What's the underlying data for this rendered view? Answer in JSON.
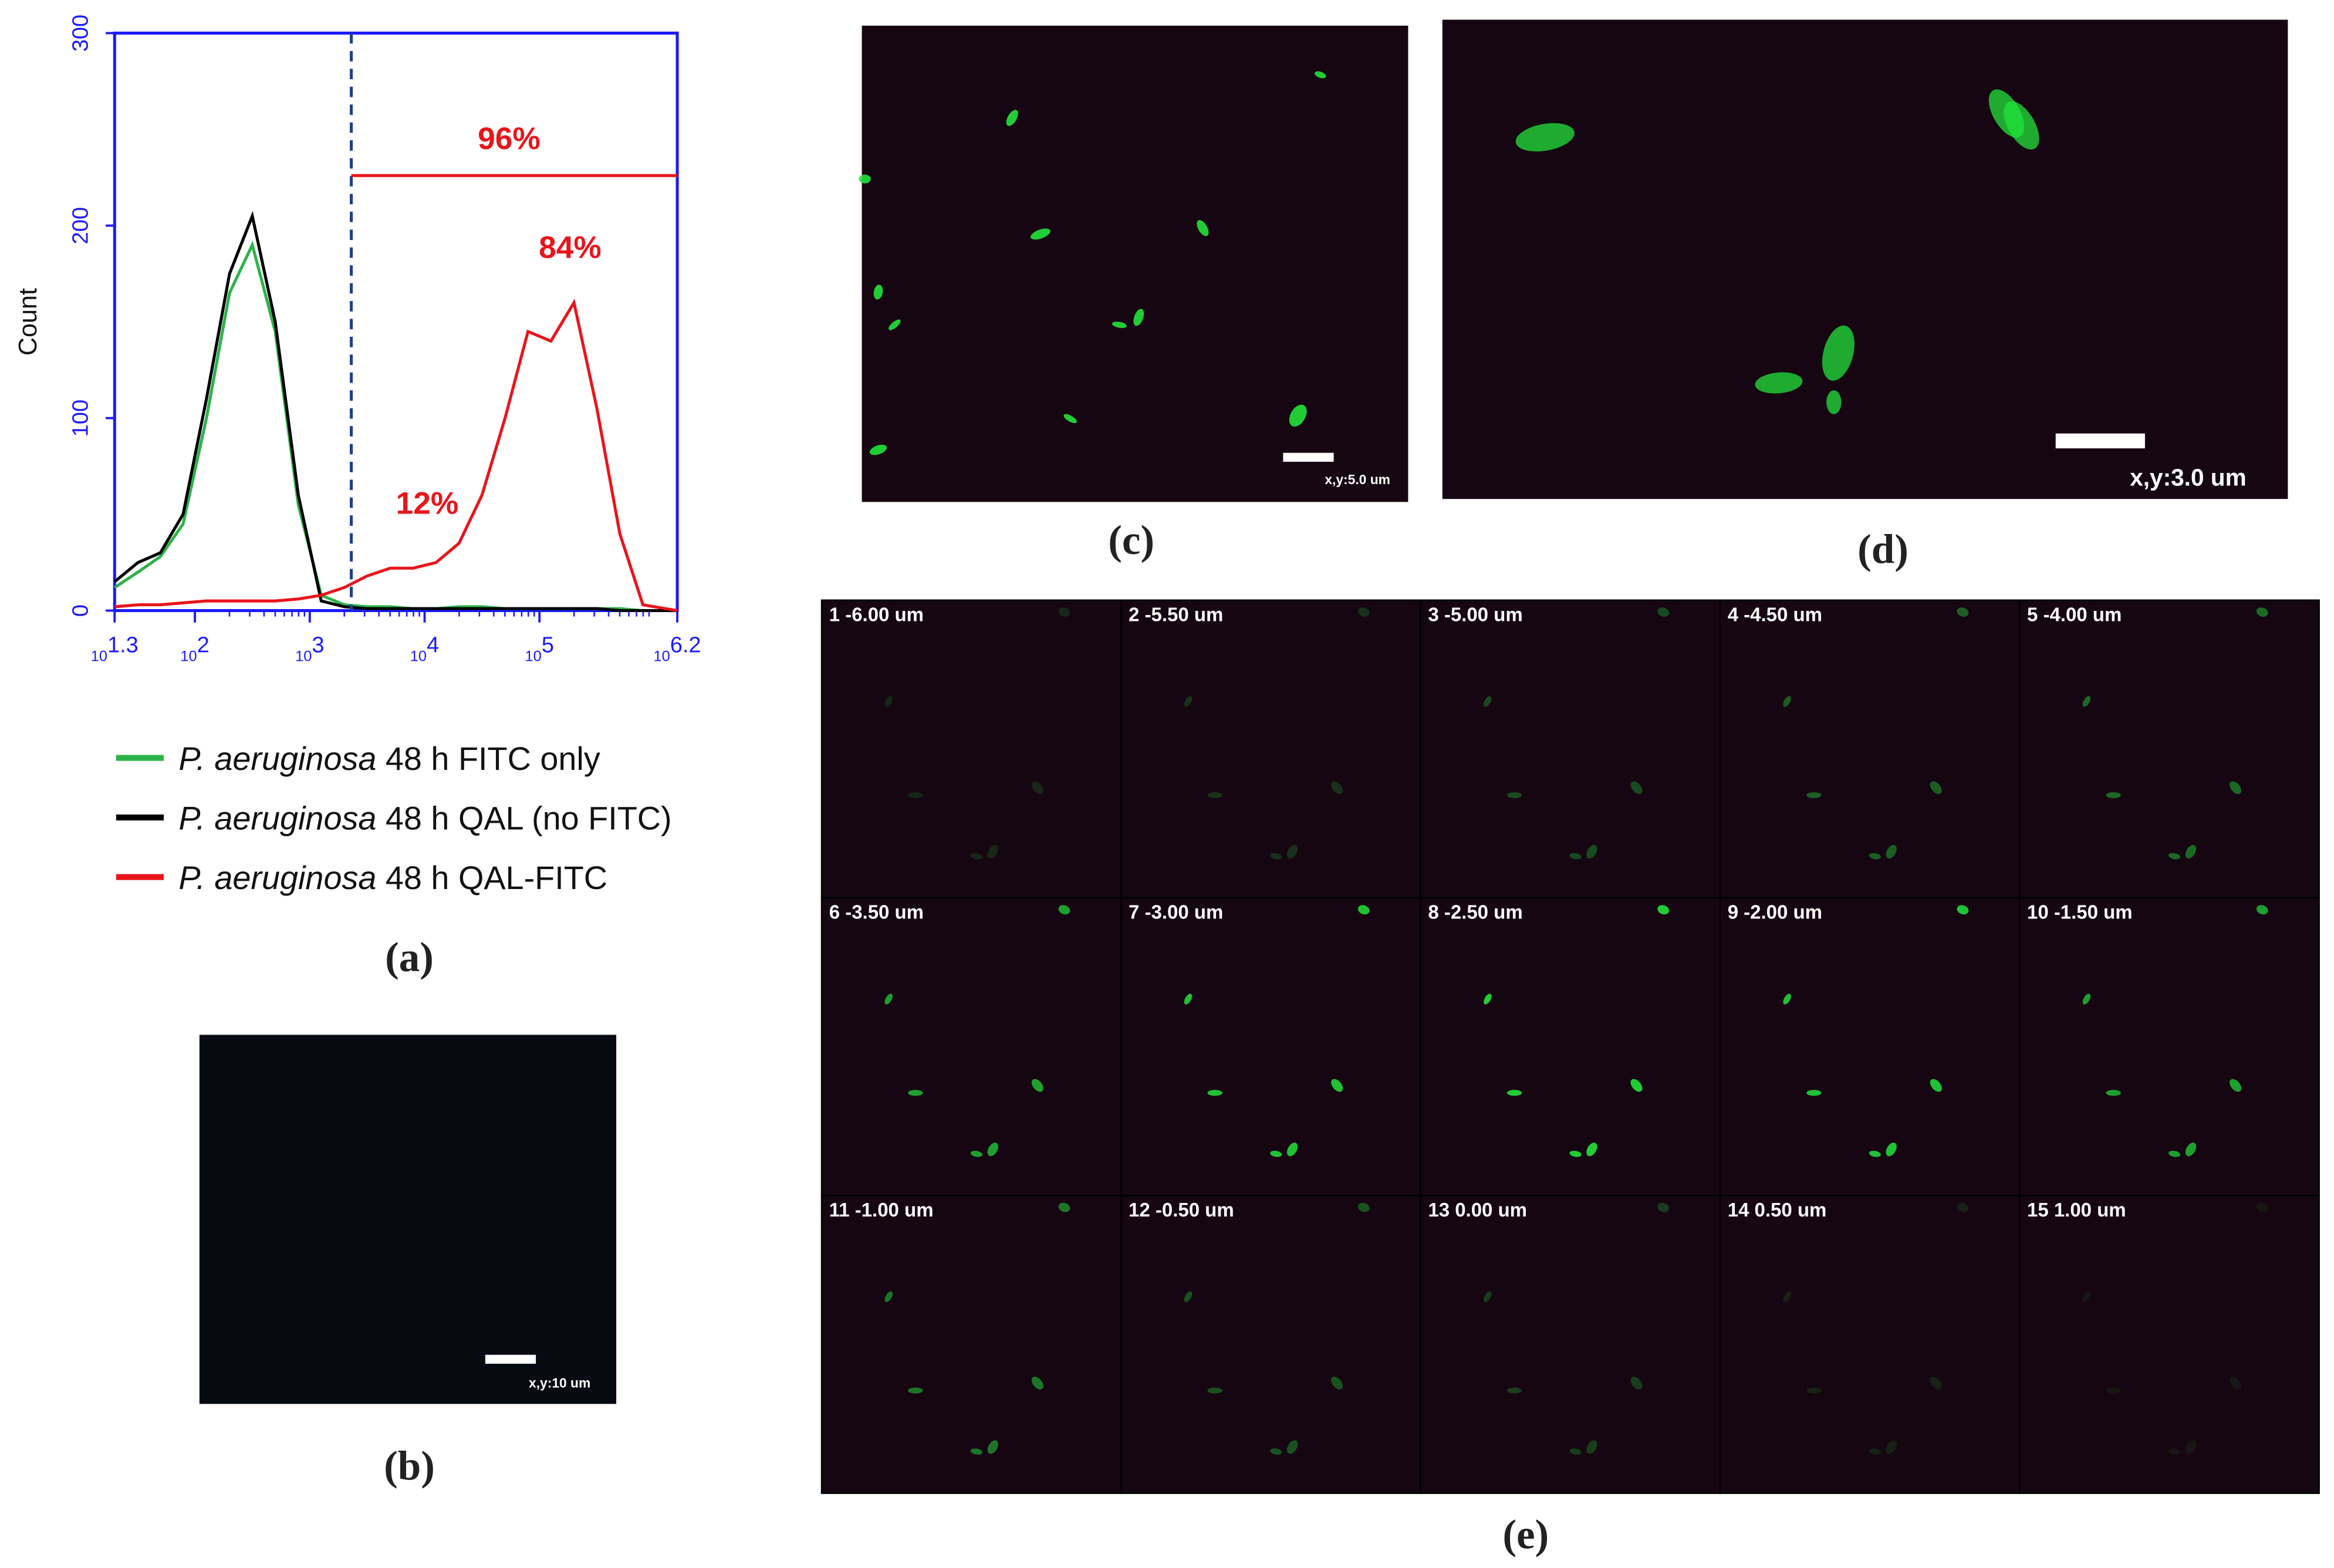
{
  "chart_data": {
    "type": "line",
    "ylabel": "Count",
    "xscale": "log",
    "xtick_base": "10",
    "xlim": [
      20,
      1584893
    ],
    "ylim": [
      0,
      300
    ],
    "xticks": [
      {
        "value": 20,
        "label": "1.3"
      },
      {
        "value": 100,
        "label": "2"
      },
      {
        "value": 1000,
        "label": "3"
      },
      {
        "value": 10000,
        "label": "4"
      },
      {
        "value": 100000,
        "label": "5"
      },
      {
        "value": 1584893,
        "label": "6.2"
      }
    ],
    "yticks": [
      0,
      100,
      200,
      300
    ],
    "x": [
      20,
      32,
      50,
      79,
      126,
      200,
      316,
      501,
      794,
      1259,
      2000,
      3162,
      5012,
      7943,
      12589,
      19953,
      31623,
      50119,
      79433,
      125893,
      199526,
      316228,
      501187,
      794328,
      1258925,
      1584893
    ],
    "series": [
      {
        "name": "P. aeruginosa 48 h FITC only",
        "color": "#2db34a",
        "values": [
          12,
          20,
          28,
          45,
          100,
          165,
          190,
          145,
          55,
          8,
          3,
          2,
          2,
          1,
          1,
          2,
          2,
          1,
          1,
          1,
          1,
          1,
          1,
          0,
          0,
          0
        ]
      },
      {
        "name": "P. aeruginosa 48 h QAL (no FITC)",
        "color": "#000000",
        "values": [
          15,
          25,
          30,
          50,
          110,
          175,
          205,
          150,
          60,
          5,
          2,
          1,
          1,
          1,
          1,
          1,
          1,
          1,
          1,
          1,
          1,
          1,
          0,
          0,
          0,
          0
        ]
      },
      {
        "name": "P. aeruginosa 48 h QAL-FITC",
        "color": "#e8151b",
        "values": [
          2,
          3,
          3,
          4,
          5,
          5,
          5,
          5,
          6,
          8,
          12,
          18,
          22,
          22,
          25,
          35,
          60,
          100,
          145,
          140,
          160,
          105,
          40,
          3,
          1,
          0
        ]
      }
    ],
    "gate_x": 2300,
    "range_y": 226,
    "annotations": [
      "96%",
      "84%",
      "12%"
    ],
    "panel_label": "(a)"
  },
  "panels": {
    "b": {
      "label": "(b)",
      "scale": "x,y:10 um"
    },
    "c": {
      "label": "(c)",
      "scale": "x,y:5.0 um"
    },
    "d": {
      "label": "(d)",
      "scale": "x,y:3.0 um"
    },
    "e": {
      "label": "(e)",
      "slices": [
        "1 -6.00 um",
        "2 -5.50 um",
        "3 -5.00 um",
        "4 -4.50 um",
        "5 -4.00 um",
        "6 -3.50 um",
        "7 -3.00 um",
        "8 -2.50 um",
        "9 -2.00 um",
        "10 -1.50 um",
        "11 -1.00 um",
        "12 -0.50 um",
        "13 0.00 um",
        "14 0.50 um",
        "15 1.00 um"
      ]
    }
  }
}
